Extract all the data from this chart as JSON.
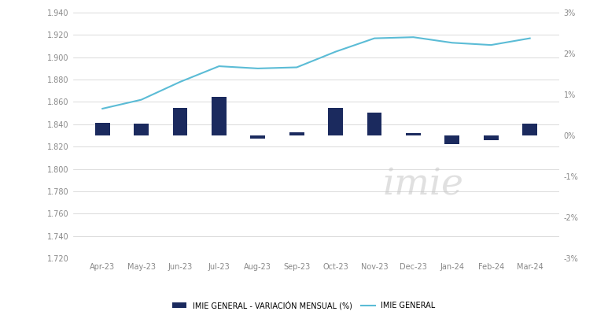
{
  "months": [
    "Apr-23",
    "May-23",
    "Jun-23",
    "Jul-23",
    "Aug-23",
    "Sep-23",
    "Oct-23",
    "Nov-23",
    "Dec-23",
    "Jan-24",
    "Feb-24",
    "Mar-24"
  ],
  "imie_general": [
    1854,
    1862,
    1878,
    1892,
    1890,
    1891,
    1905,
    1917,
    1918,
    1913,
    1911,
    1917
  ],
  "variacion_mensual": [
    0.3,
    0.28,
    0.68,
    0.95,
    -0.08,
    0.08,
    0.68,
    0.55,
    0.05,
    -0.22,
    -0.12,
    0.28
  ],
  "bar_color": "#1b2a5e",
  "line_color": "#5bbcd6",
  "left_ylim": [
    1720,
    1940
  ],
  "right_ylim": [
    -3,
    3
  ],
  "left_yticks": [
    1720,
    1740,
    1760,
    1780,
    1800,
    1820,
    1840,
    1860,
    1880,
    1900,
    1920,
    1940
  ],
  "right_yticks": [
    -3,
    -2,
    -1,
    0,
    1,
    2,
    3
  ],
  "legend_bar_label": "IMIE GENERAL - VARIACIÓN MENSUAL (%)",
  "legend_line_label": "IMIE GENERAL",
  "watermark": "imie",
  "background_color": "#ffffff",
  "grid_color": "#cccccc",
  "tick_color": "#888888",
  "bar_width": 0.38
}
